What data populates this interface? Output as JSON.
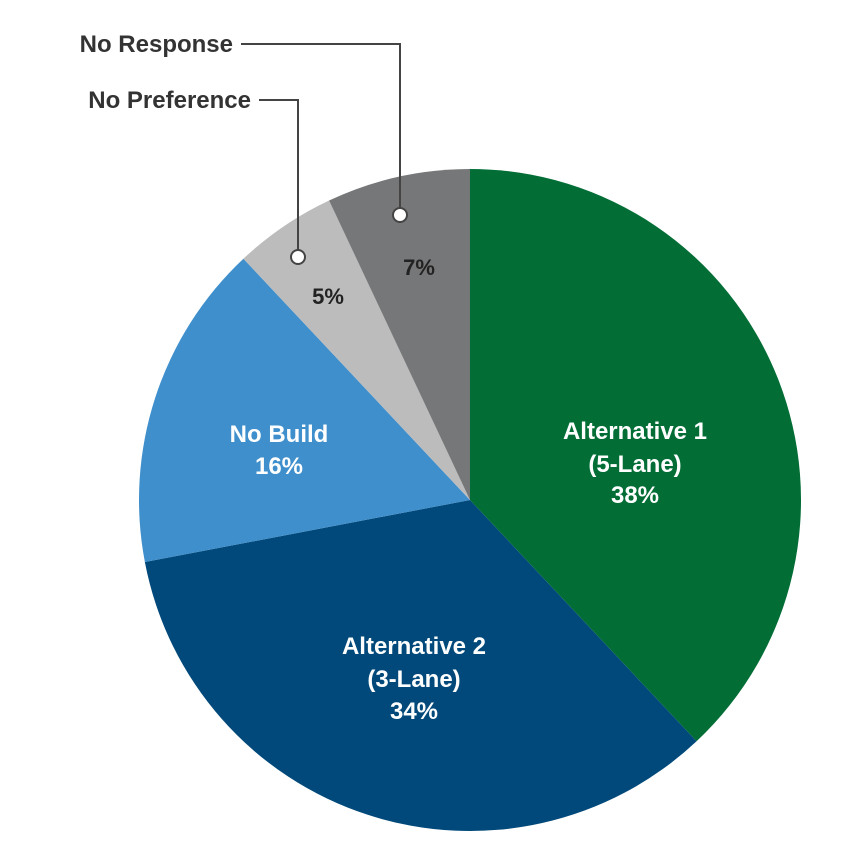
{
  "chart_data": {
    "type": "pie",
    "title": "",
    "slices": [
      {
        "key": "alt1",
        "name_lines": [
          "Alternative 1",
          "(5-Lane)"
        ],
        "value": 38,
        "pct_label": "38%",
        "color": "#026e36"
      },
      {
        "key": "alt2",
        "name_lines": [
          "Alternative 2",
          "(3-Lane)"
        ],
        "value": 34,
        "pct_label": "34%",
        "color": "#01497a"
      },
      {
        "key": "nobuild",
        "name_lines": [
          "No Build"
        ],
        "value": 16,
        "pct_label": "16%",
        "color": "#3f8fcc"
      },
      {
        "key": "nopref",
        "name_lines": [
          "No Preference"
        ],
        "value": 5,
        "pct_label": "5%",
        "color": "#bcbcbc"
      },
      {
        "key": "noresp",
        "name_lines": [
          "No Response"
        ],
        "value": 7,
        "pct_label": "7%",
        "color": "#767779"
      }
    ],
    "start": "12 o'clock",
    "direction": "clockwise"
  }
}
